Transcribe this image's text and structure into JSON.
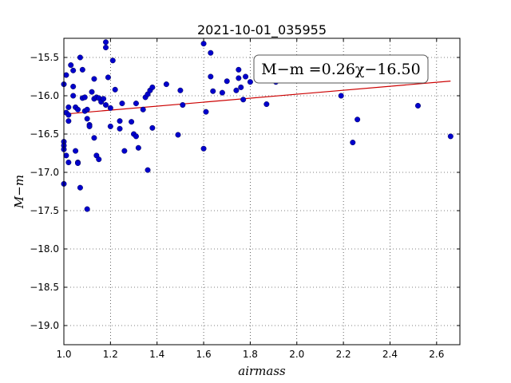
{
  "chart_data": {
    "type": "scatter",
    "title": "2021-10-01_035955",
    "xlabel": "airmass",
    "ylabel": "M−m",
    "xlim": [
      1.0,
      2.7
    ],
    "ylim": [
      -19.25,
      -15.25
    ],
    "xticks": [
      1.0,
      1.2,
      1.4,
      1.6,
      1.8,
      2.0,
      2.2,
      2.4,
      2.6
    ],
    "xtick_labels": [
      "1.0",
      "1.2",
      "1.4",
      "1.6",
      "1.8",
      "2.0",
      "2.2",
      "2.4",
      "2.6"
    ],
    "yticks": [
      -19.0,
      -18.5,
      -18.0,
      -17.5,
      -17.0,
      -16.5,
      -16.0,
      -15.5
    ],
    "ytick_labels": [
      "−19.0",
      "−18.5",
      "−18.0",
      "−17.5",
      "−17.0",
      "−16.5",
      "−16.0",
      "−15.5"
    ],
    "grid": true,
    "annotation": "M−m =0.26χ−16.50",
    "point_color": "#0000cc",
    "line_color": "#cc0000",
    "fit": {
      "slope": 0.26,
      "intercept": -16.5,
      "x_range": [
        1.0,
        2.66
      ]
    },
    "points": [
      [
        1.0,
        -15.85
      ],
      [
        1.0,
        -16.6
      ],
      [
        1.0,
        -16.65
      ],
      [
        1.0,
        -16.7
      ],
      [
        1.0,
        -17.15
      ],
      [
        1.01,
        -15.73
      ],
      [
        1.01,
        -16.22
      ],
      [
        1.01,
        -16.78
      ],
      [
        1.02,
        -16.15
      ],
      [
        1.02,
        -16.25
      ],
      [
        1.02,
        -16.33
      ],
      [
        1.02,
        -16.87
      ],
      [
        1.03,
        -15.6
      ],
      [
        1.04,
        -15.88
      ],
      [
        1.04,
        -16.0
      ],
      [
        1.04,
        -15.67
      ],
      [
        1.05,
        -16.15
      ],
      [
        1.05,
        -16.72
      ],
      [
        1.06,
        -16.18
      ],
      [
        1.06,
        -16.87
      ],
      [
        1.06,
        -16.88
      ],
      [
        1.07,
        -15.5
      ],
      [
        1.07,
        -17.2
      ],
      [
        1.08,
        -15.66
      ],
      [
        1.08,
        -16.03
      ],
      [
        1.09,
        -16.02
      ],
      [
        1.09,
        -16.2
      ],
      [
        1.1,
        -16.18
      ],
      [
        1.1,
        -16.3
      ],
      [
        1.1,
        -17.48
      ],
      [
        1.11,
        -16.38
      ],
      [
        1.11,
        -16.4
      ],
      [
        1.12,
        -15.95
      ],
      [
        1.13,
        -15.78
      ],
      [
        1.13,
        -16.04
      ],
      [
        1.13,
        -16.55
      ],
      [
        1.14,
        -16.02
      ],
      [
        1.14,
        -16.78
      ],
      [
        1.15,
        -16.03
      ],
      [
        1.15,
        -16.83
      ],
      [
        1.16,
        -16.08
      ],
      [
        1.17,
        -16.04
      ],
      [
        1.18,
        -15.3
      ],
      [
        1.18,
        -15.37
      ],
      [
        1.18,
        -16.12
      ],
      [
        1.19,
        -15.76
      ],
      [
        1.2,
        -16.16
      ],
      [
        1.2,
        -16.4
      ],
      [
        1.21,
        -15.54
      ],
      [
        1.22,
        -15.92
      ],
      [
        1.24,
        -16.33
      ],
      [
        1.24,
        -16.43
      ],
      [
        1.25,
        -16.1
      ],
      [
        1.26,
        -16.72
      ],
      [
        1.29,
        -16.34
      ],
      [
        1.3,
        -16.5
      ],
      [
        1.31,
        -16.1
      ],
      [
        1.31,
        -16.53
      ],
      [
        1.32,
        -16.68
      ],
      [
        1.34,
        -16.18
      ],
      [
        1.35,
        -16.02
      ],
      [
        1.36,
        -15.98
      ],
      [
        1.36,
        -16.97
      ],
      [
        1.37,
        -15.93
      ],
      [
        1.38,
        -15.89
      ],
      [
        1.38,
        -16.42
      ],
      [
        1.44,
        -15.85
      ],
      [
        1.49,
        -16.51
      ],
      [
        1.5,
        -15.93
      ],
      [
        1.51,
        -16.12
      ],
      [
        1.6,
        -15.32
      ],
      [
        1.6,
        -16.69
      ],
      [
        1.61,
        -16.21
      ],
      [
        1.63,
        -15.44
      ],
      [
        1.63,
        -15.75
      ],
      [
        1.64,
        -15.94
      ],
      [
        1.68,
        -15.96
      ],
      [
        1.7,
        -15.81
      ],
      [
        1.74,
        -15.93
      ],
      [
        1.75,
        -15.66
      ],
      [
        1.75,
        -15.77
      ],
      [
        1.76,
        -15.89
      ],
      [
        1.77,
        -16.05
      ],
      [
        1.78,
        -15.75
      ],
      [
        1.8,
        -15.82
      ],
      [
        1.87,
        -16.11
      ],
      [
        1.91,
        -15.82
      ],
      [
        2.19,
        -16.0
      ],
      [
        2.24,
        -16.61
      ],
      [
        2.26,
        -16.31
      ],
      [
        2.52,
        -16.13
      ],
      [
        2.66,
        -16.53
      ]
    ]
  }
}
